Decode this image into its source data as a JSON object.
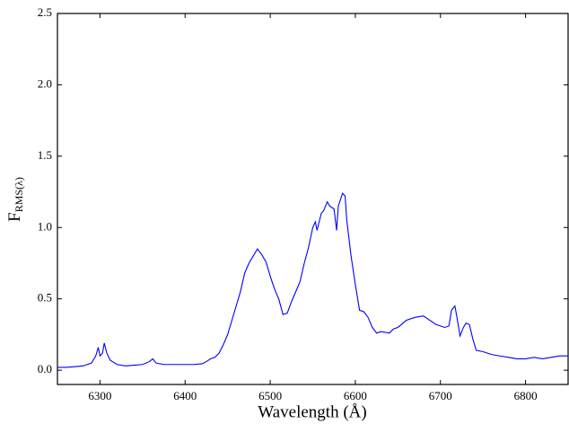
{
  "chart_data": {
    "type": "line",
    "x_label": "Wavelength (Å)",
    "y_label": "F",
    "y_label_subscript": "RMS(λ)",
    "xlim": [
      6250,
      6850
    ],
    "ylim": [
      -0.1,
      2.5
    ],
    "xticks": [
      6300,
      6400,
      6500,
      6600,
      6700,
      6800
    ],
    "yticks": [
      {
        "value": 0,
        "label": "0.0"
      },
      0.5,
      {
        "value": 1,
        "label": "1.0"
      },
      1.5,
      {
        "value": 2,
        "label": "2.0"
      },
      2.5
    ],
    "x": [
      6250,
      6260,
      6270,
      6280,
      6290,
      6295,
      6298,
      6300,
      6303,
      6305,
      6308,
      6312,
      6320,
      6330,
      6340,
      6350,
      6358,
      6362,
      6366,
      6375,
      6390,
      6400,
      6410,
      6420,
      6425,
      6430,
      6435,
      6440,
      6445,
      6450,
      6455,
      6460,
      6465,
      6470,
      6475,
      6480,
      6485,
      6490,
      6495,
      6500,
      6505,
      6510,
      6515,
      6520,
      6525,
      6530,
      6535,
      6540,
      6545,
      6550,
      6553,
      6555,
      6560,
      6563,
      6567,
      6570,
      6575,
      6578,
      6580,
      6585,
      6588,
      6590,
      6595,
      6600,
      6605,
      6610,
      6615,
      6620,
      6625,
      6630,
      6640,
      6645,
      6650,
      6660,
      6670,
      6680,
      6685,
      6690,
      6695,
      6700,
      6705,
      6710,
      6713,
      6717,
      6720,
      6723,
      6727,
      6730,
      6734,
      6738,
      6742,
      6750,
      6760,
      6770,
      6780,
      6790,
      6800,
      6810,
      6820,
      6830,
      6840,
      6850
    ],
    "series": [
      {
        "color": "#0000ff",
        "values": [
          0.02,
          0.02,
          0.025,
          0.03,
          0.05,
          0.1,
          0.16,
          0.1,
          0.12,
          0.19,
          0.12,
          0.07,
          0.04,
          0.03,
          0.035,
          0.04,
          0.06,
          0.08,
          0.05,
          0.04,
          0.04,
          0.04,
          0.04,
          0.045,
          0.06,
          0.08,
          0.09,
          0.12,
          0.18,
          0.25,
          0.35,
          0.45,
          0.55,
          0.68,
          0.75,
          0.8,
          0.85,
          0.81,
          0.76,
          0.66,
          0.57,
          0.5,
          0.39,
          0.4,
          0.48,
          0.55,
          0.62,
          0.75,
          0.86,
          1.0,
          1.04,
          0.98,
          1.1,
          1.12,
          1.18,
          1.15,
          1.13,
          0.98,
          1.15,
          1.24,
          1.22,
          1.05,
          0.8,
          0.6,
          0.42,
          0.41,
          0.37,
          0.3,
          0.26,
          0.27,
          0.26,
          0.29,
          0.3,
          0.35,
          0.37,
          0.38,
          0.36,
          0.34,
          0.32,
          0.31,
          0.3,
          0.31,
          0.42,
          0.45,
          0.35,
          0.24,
          0.3,
          0.33,
          0.32,
          0.22,
          0.14,
          0.13,
          0.11,
          0.1,
          0.09,
          0.08,
          0.08,
          0.09,
          0.08,
          0.09,
          0.1,
          0.1
        ]
      }
    ]
  }
}
